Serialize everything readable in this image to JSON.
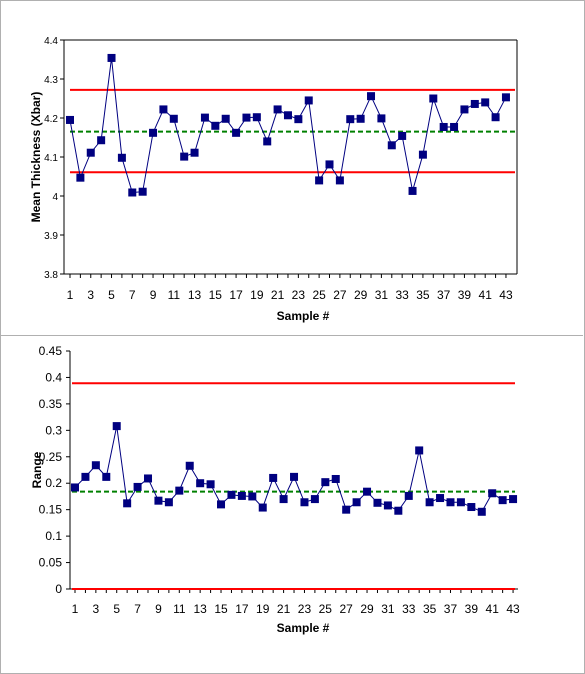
{
  "chart_data": [
    {
      "type": "line",
      "xlabel": "Sample #",
      "ylabel": "Mean Thickness (Xbar)",
      "ylim": [
        3.8,
        4.4
      ],
      "yticks": [
        "3.8",
        "3.9",
        "4",
        "4.1",
        "4.2",
        "4.3",
        "4.4"
      ],
      "x": [
        1,
        2,
        3,
        4,
        5,
        6,
        7,
        8,
        9,
        10,
        11,
        12,
        13,
        14,
        15,
        16,
        17,
        18,
        19,
        20,
        21,
        22,
        23,
        24,
        25,
        26,
        27,
        28,
        29,
        30,
        31,
        32,
        33,
        34,
        35,
        36,
        37,
        38,
        39,
        40,
        41,
        42,
        43
      ],
      "xticks": [
        "1",
        "3",
        "5",
        "7",
        "9",
        "11",
        "13",
        "15",
        "17",
        "19",
        "21",
        "23",
        "25",
        "27",
        "29",
        "31",
        "33",
        "35",
        "37",
        "39",
        "41",
        "43"
      ],
      "values": [
        4.195,
        4.047,
        4.111,
        4.143,
        4.354,
        4.098,
        4.009,
        4.011,
        4.162,
        4.222,
        4.198,
        4.101,
        4.111,
        4.201,
        4.18,
        4.198,
        4.162,
        4.201,
        4.202,
        4.14,
        4.222,
        4.207,
        4.197,
        4.245,
        4.04,
        4.081,
        4.04,
        4.197,
        4.198,
        4.256,
        4.199,
        4.13,
        4.154,
        4.013,
        4.106,
        4.25,
        4.177,
        4.177,
        4.222,
        4.236,
        4.24,
        4.202,
        4.253
      ],
      "ucl": 4.272,
      "center": 4.165,
      "lcl": 4.061,
      "grid": false,
      "colors": {
        "series": "#000080",
        "limits": "#ff0000",
        "center": "#008000"
      }
    },
    {
      "type": "line",
      "xlabel": "Sample #",
      "ylabel": "Range",
      "ylim": [
        0,
        0.45
      ],
      "yticks": [
        "0",
        "0.05",
        "0.1",
        "0.15",
        "0.2",
        "0.25",
        "0.3",
        "0.35",
        "0.4",
        "0.45"
      ],
      "x": [
        1,
        2,
        3,
        4,
        5,
        6,
        7,
        8,
        9,
        10,
        11,
        12,
        13,
        14,
        15,
        16,
        17,
        18,
        19,
        20,
        21,
        22,
        23,
        24,
        25,
        26,
        27,
        28,
        29,
        30,
        31,
        32,
        33,
        34,
        35,
        36,
        37,
        38,
        39,
        40,
        41,
        42,
        43
      ],
      "xticks": [
        "1",
        "3",
        "5",
        "7",
        "9",
        "11",
        "13",
        "15",
        "17",
        "19",
        "21",
        "23",
        "25",
        "27",
        "29",
        "31",
        "33",
        "35",
        "37",
        "39",
        "41",
        "43"
      ],
      "values": [
        0.192,
        0.212,
        0.234,
        0.212,
        0.308,
        0.162,
        0.193,
        0.209,
        0.167,
        0.164,
        0.186,
        0.233,
        0.2,
        0.198,
        0.16,
        0.178,
        0.176,
        0.175,
        0.154,
        0.21,
        0.17,
        0.212,
        0.164,
        0.17,
        0.202,
        0.208,
        0.15,
        0.164,
        0.184,
        0.163,
        0.158,
        0.148,
        0.176,
        0.262,
        0.164,
        0.172,
        0.164,
        0.164,
        0.155,
        0.146,
        0.181,
        0.168,
        0.17
      ],
      "ucl": 0.389,
      "center": 0.184,
      "lcl": 0.0,
      "grid": false,
      "colors": {
        "series": "#000080",
        "limits": "#ff0000",
        "center": "#008000"
      }
    }
  ]
}
